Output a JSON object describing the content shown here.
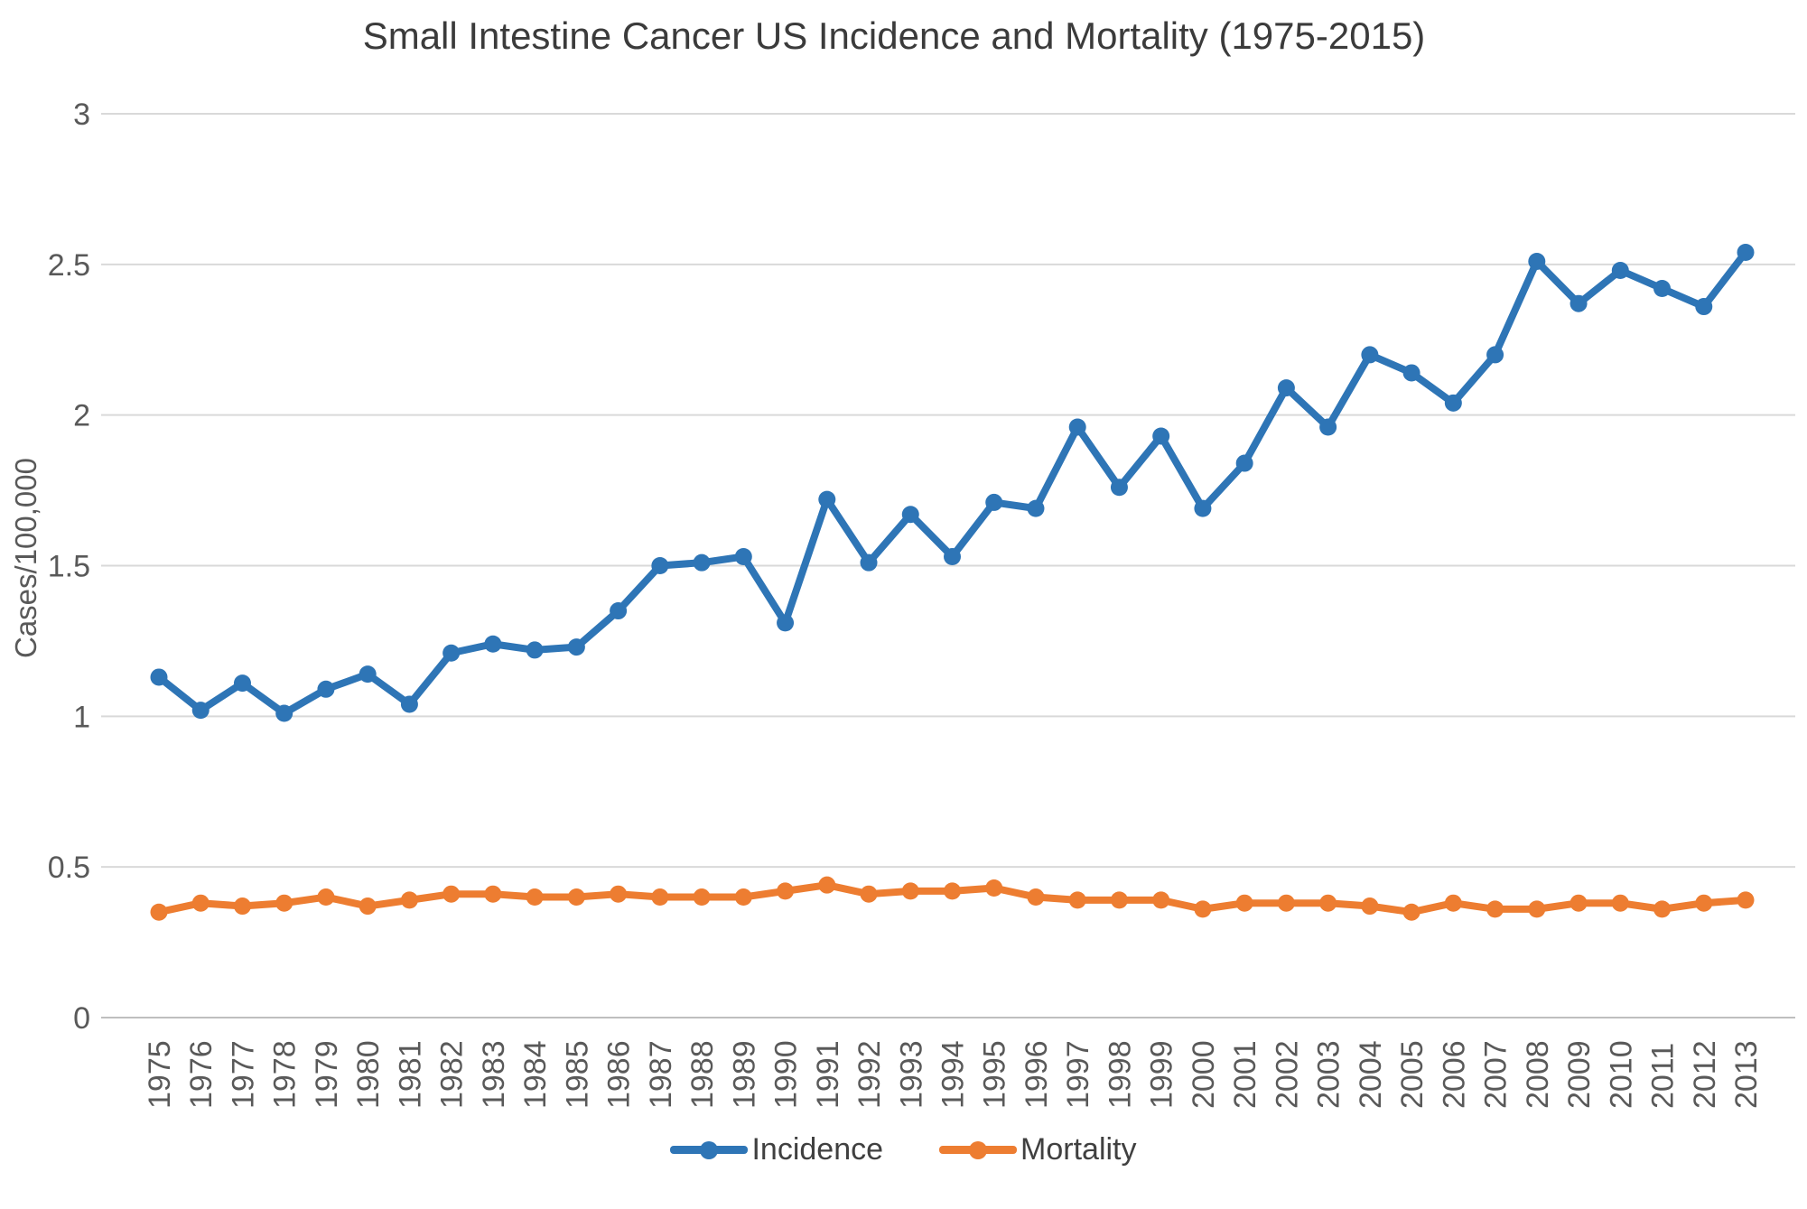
{
  "chart_data": {
    "type": "line",
    "title": "Small Intestine Cancer US Incidence and Mortality (1975-2015)",
    "xlabel": "",
    "ylabel": "Cases/100,000",
    "ylim": [
      0,
      3
    ],
    "ytick_step": 0.5,
    "ytick_labels": [
      "0",
      "0.5",
      "1",
      "1.5",
      "2",
      "2.5",
      "3"
    ],
    "grid": "horizontal",
    "legend_position": "bottom",
    "categories": [
      1975,
      1976,
      1977,
      1978,
      1979,
      1980,
      1981,
      1982,
      1983,
      1984,
      1985,
      1986,
      1987,
      1988,
      1989,
      1990,
      1991,
      1992,
      1993,
      1994,
      1995,
      1996,
      1997,
      1998,
      1999,
      2000,
      2001,
      2002,
      2003,
      2004,
      2005,
      2006,
      2007,
      2008,
      2009,
      2010,
      2011,
      2012,
      2013
    ],
    "series": [
      {
        "name": "Incidence",
        "color": "#2E75B6",
        "values": [
          1.13,
          1.02,
          1.11,
          1.01,
          1.09,
          1.14,
          1.04,
          1.21,
          1.24,
          1.22,
          1.23,
          1.35,
          1.5,
          1.51,
          1.53,
          1.31,
          1.72,
          1.51,
          1.67,
          1.53,
          1.71,
          1.69,
          1.96,
          1.76,
          1.93,
          1.69,
          1.84,
          2.09,
          1.96,
          2.2,
          2.14,
          2.04,
          2.2,
          2.51,
          2.37,
          2.48,
          2.42,
          2.36,
          2.54
        ]
      },
      {
        "name": "Mortality",
        "color": "#ED7D31",
        "values": [
          0.35,
          0.38,
          0.37,
          0.38,
          0.4,
          0.37,
          0.39,
          0.41,
          0.41,
          0.4,
          0.4,
          0.41,
          0.4,
          0.4,
          0.4,
          0.42,
          0.44,
          0.41,
          0.42,
          0.42,
          0.43,
          0.4,
          0.39,
          0.39,
          0.39,
          0.36,
          0.38,
          0.38,
          0.38,
          0.37,
          0.35,
          0.38,
          0.36,
          0.36,
          0.38,
          0.38,
          0.36,
          0.38,
          0.39
        ]
      }
    ],
    "colors": {
      "gridline": "#D9D9D9",
      "baseline": "#BFBFBF",
      "tick_text": "#595959",
      "title_text": "#3b3b3b",
      "legend_text": "#404040"
    }
  }
}
